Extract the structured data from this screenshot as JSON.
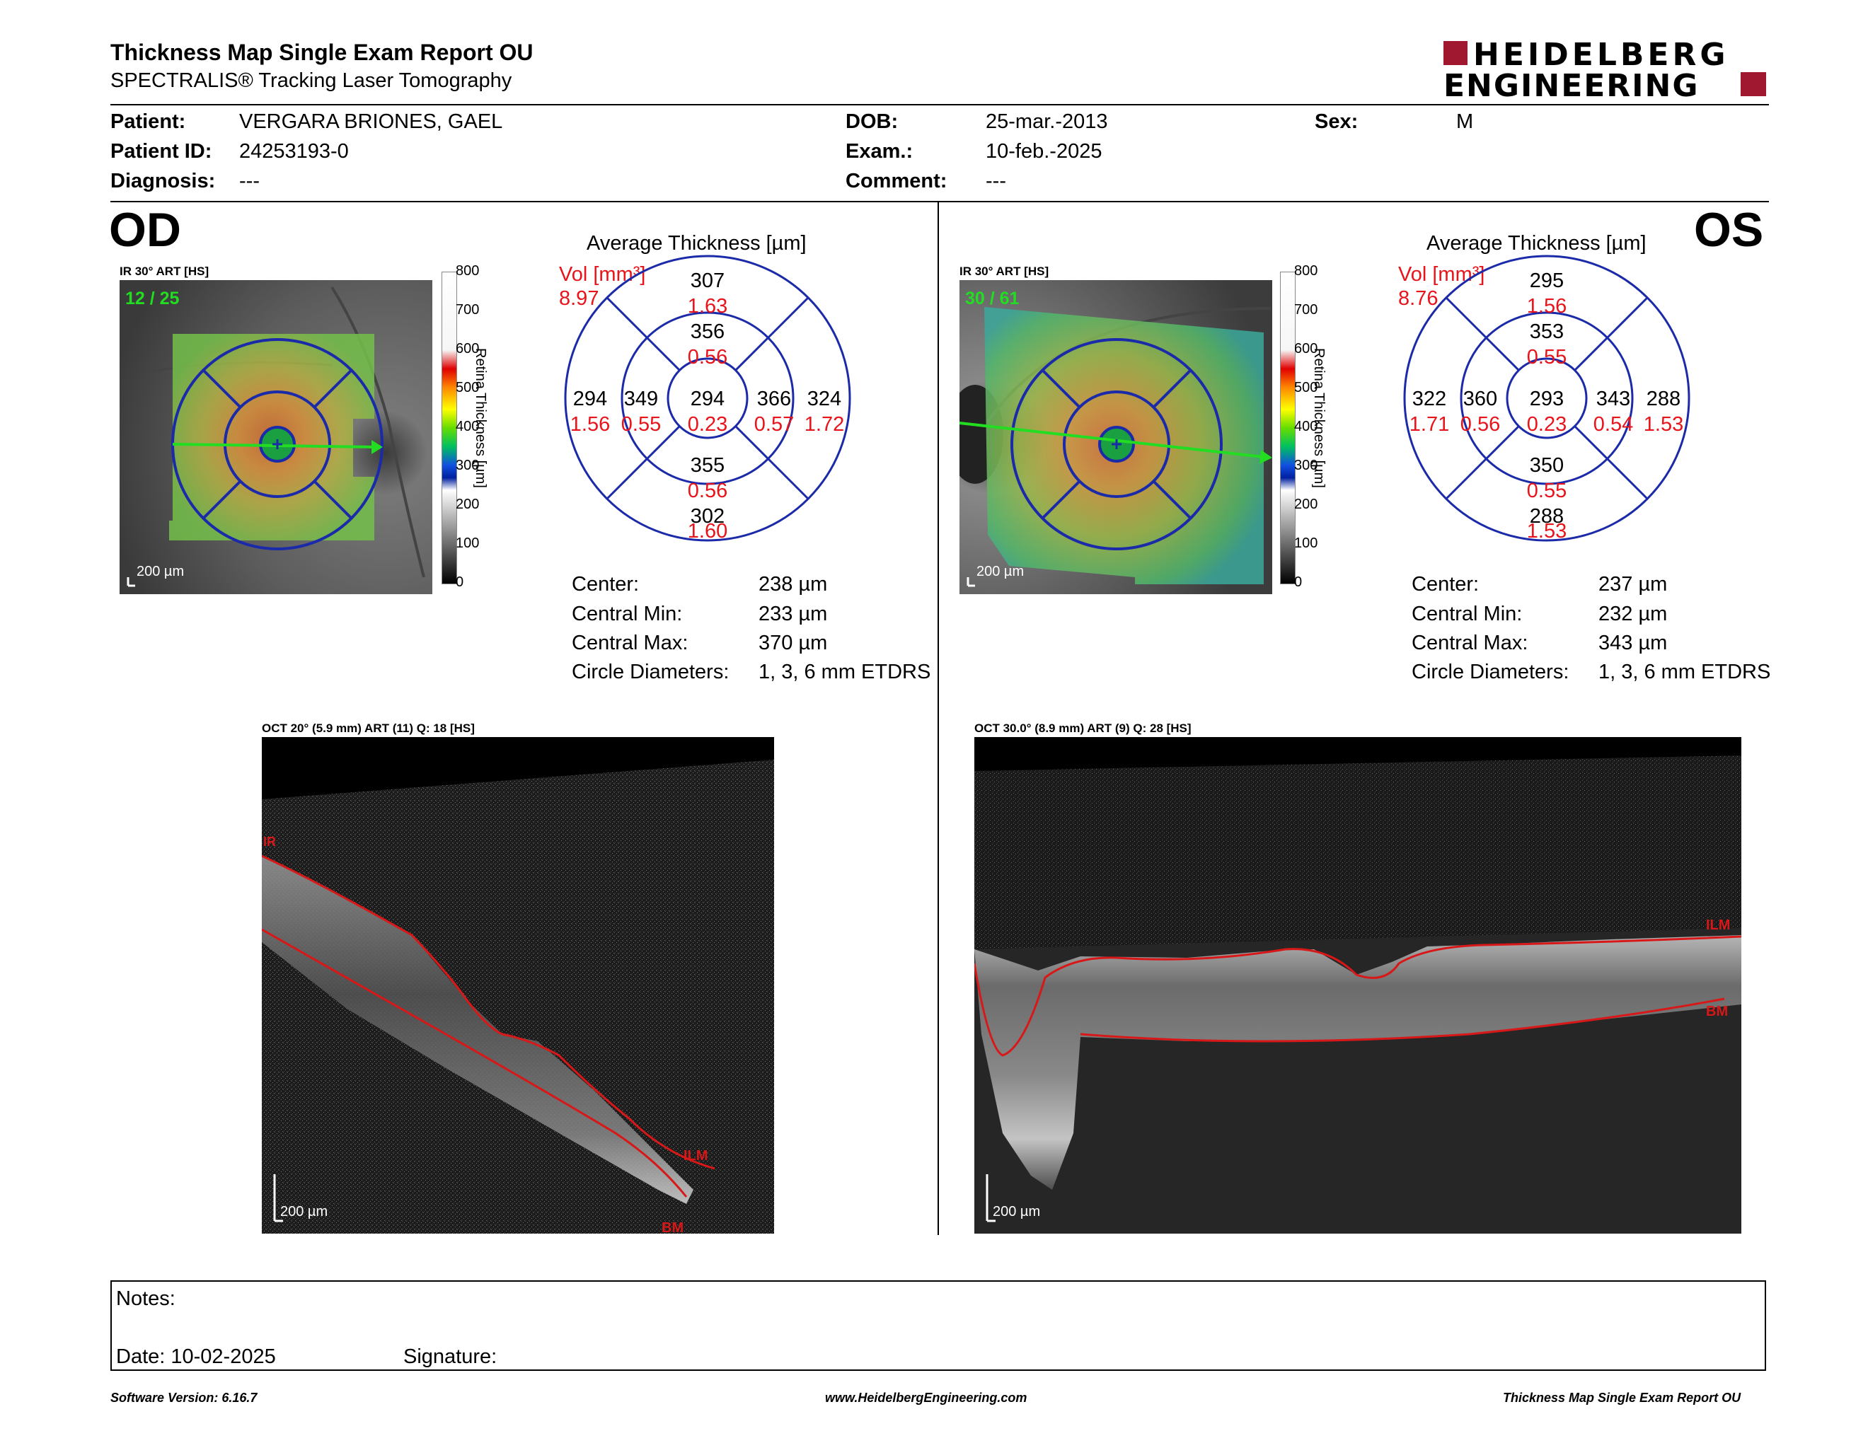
{
  "header": {
    "title": "Thickness Map Single Exam Report OU",
    "subtitle": "SPECTRALIS® Tracking Laser Tomography",
    "logo_line1": "HEIDELBERG",
    "logo_line2": "ENGINEERING"
  },
  "patient": {
    "patient_label": "Patient:",
    "patient_value": "VERGARA BRIONES, GAEL",
    "id_label": "Patient ID:",
    "id_value": "24253193-0",
    "diagnosis_label": "Diagnosis:",
    "diagnosis_value": "---",
    "dob_label": "DOB:",
    "dob_value": "25-mar.-2013",
    "exam_label": "Exam.:",
    "exam_value": "10-feb.-2025",
    "comment_label": "Comment:",
    "comment_value": "---",
    "sex_label": "Sex:",
    "sex_value": "M"
  },
  "colorbar": {
    "ticks": [
      "800",
      "700",
      "600",
      "500",
      "400",
      "300",
      "200",
      "100",
      "0"
    ],
    "label": "Retina Thickness [µm]"
  },
  "od": {
    "eye_label": "OD",
    "ir_caption": "IR 30° ART [HS]",
    "frame_counter": "12 / 25",
    "scale_bar": "200 µm",
    "avg_title": "Average Thickness [µm]",
    "vol_label": "Vol [mm³]",
    "vol_value": "8.97",
    "sectors": {
      "center": {
        "thickness": "294",
        "volume": "0.23"
      },
      "inner_superior": {
        "thickness": "356",
        "volume": "0.56"
      },
      "inner_inferior": {
        "thickness": "355",
        "volume": "0.56"
      },
      "inner_temporal": {
        "thickness": "349",
        "volume": "0.55"
      },
      "inner_nasal": {
        "thickness": "366",
        "volume": "0.57"
      },
      "outer_superior": {
        "thickness": "307",
        "volume": "1.63"
      },
      "outer_inferior": {
        "thickness": "302",
        "volume": "1.60"
      },
      "outer_temporal": {
        "thickness": "294",
        "volume": "1.56"
      },
      "outer_nasal": {
        "thickness": "324",
        "volume": "1.72"
      }
    },
    "stats": {
      "center_label": "Center:",
      "center_value": "238 µm",
      "min_label": "Central Min:",
      "min_value": "233 µm",
      "max_label": "Central Max:",
      "max_value": "370 µm",
      "diam_label": "Circle Diameters:",
      "diam_value": "1, 3, 6 mm ETDRS"
    },
    "oct_caption": "OCT 20° (5.9 mm) ART (11) Q: 18 [HS]",
    "oct_scale": "200 µm",
    "layer_top": "ILM",
    "layer_bottom": "BM",
    "layer_edge": "IR"
  },
  "os": {
    "eye_label": "OS",
    "ir_caption": "IR 30° ART [HS]",
    "frame_counter": "30 / 61",
    "scale_bar": "200 µm",
    "avg_title": "Average Thickness [µm]",
    "vol_label": "Vol [mm³]",
    "vol_value": "8.76",
    "sectors": {
      "center": {
        "thickness": "293",
        "volume": "0.23"
      },
      "inner_superior": {
        "thickness": "353",
        "volume": "0.55"
      },
      "inner_inferior": {
        "thickness": "350",
        "volume": "0.55"
      },
      "inner_temporal": {
        "thickness": "343",
        "volume": "0.54"
      },
      "inner_nasal": {
        "thickness": "360",
        "volume": "0.56"
      },
      "outer_superior": {
        "thickness": "295",
        "volume": "1.56"
      },
      "outer_inferior": {
        "thickness": "288",
        "volume": "1.53"
      },
      "outer_temporal": {
        "thickness": "288",
        "volume": "1.53"
      },
      "outer_nasal": {
        "thickness": "322",
        "volume": "1.71"
      }
    },
    "stats": {
      "center_label": "Center:",
      "center_value": "237 µm",
      "min_label": "Central Min:",
      "min_value": "232 µm",
      "max_label": "Central Max:",
      "max_value": "343 µm",
      "diam_label": "Circle Diameters:",
      "diam_value": "1, 3, 6 mm ETDRS"
    },
    "oct_caption": "OCT 30.0° (8.9 mm) ART (9) Q: 28 [HS]",
    "oct_scale": "200 µm",
    "layer_top": "ILM",
    "layer_bottom": "BM"
  },
  "notes": {
    "notes_label": "Notes:",
    "date_label": "Date: 10-02-2025",
    "signature_label": "Signature:"
  },
  "footer": {
    "software": "Software Version: 6.16.7",
    "website": "www.HeidelbergEngineering.com",
    "report_name": "Thickness Map Single Exam Report OU"
  },
  "colors": {
    "volume_red": "#e8141b",
    "grid_blue": "#1a2aa8",
    "logo_red": "#a01830",
    "layer_red": "#d81818",
    "scan_green": "#22dd22"
  }
}
